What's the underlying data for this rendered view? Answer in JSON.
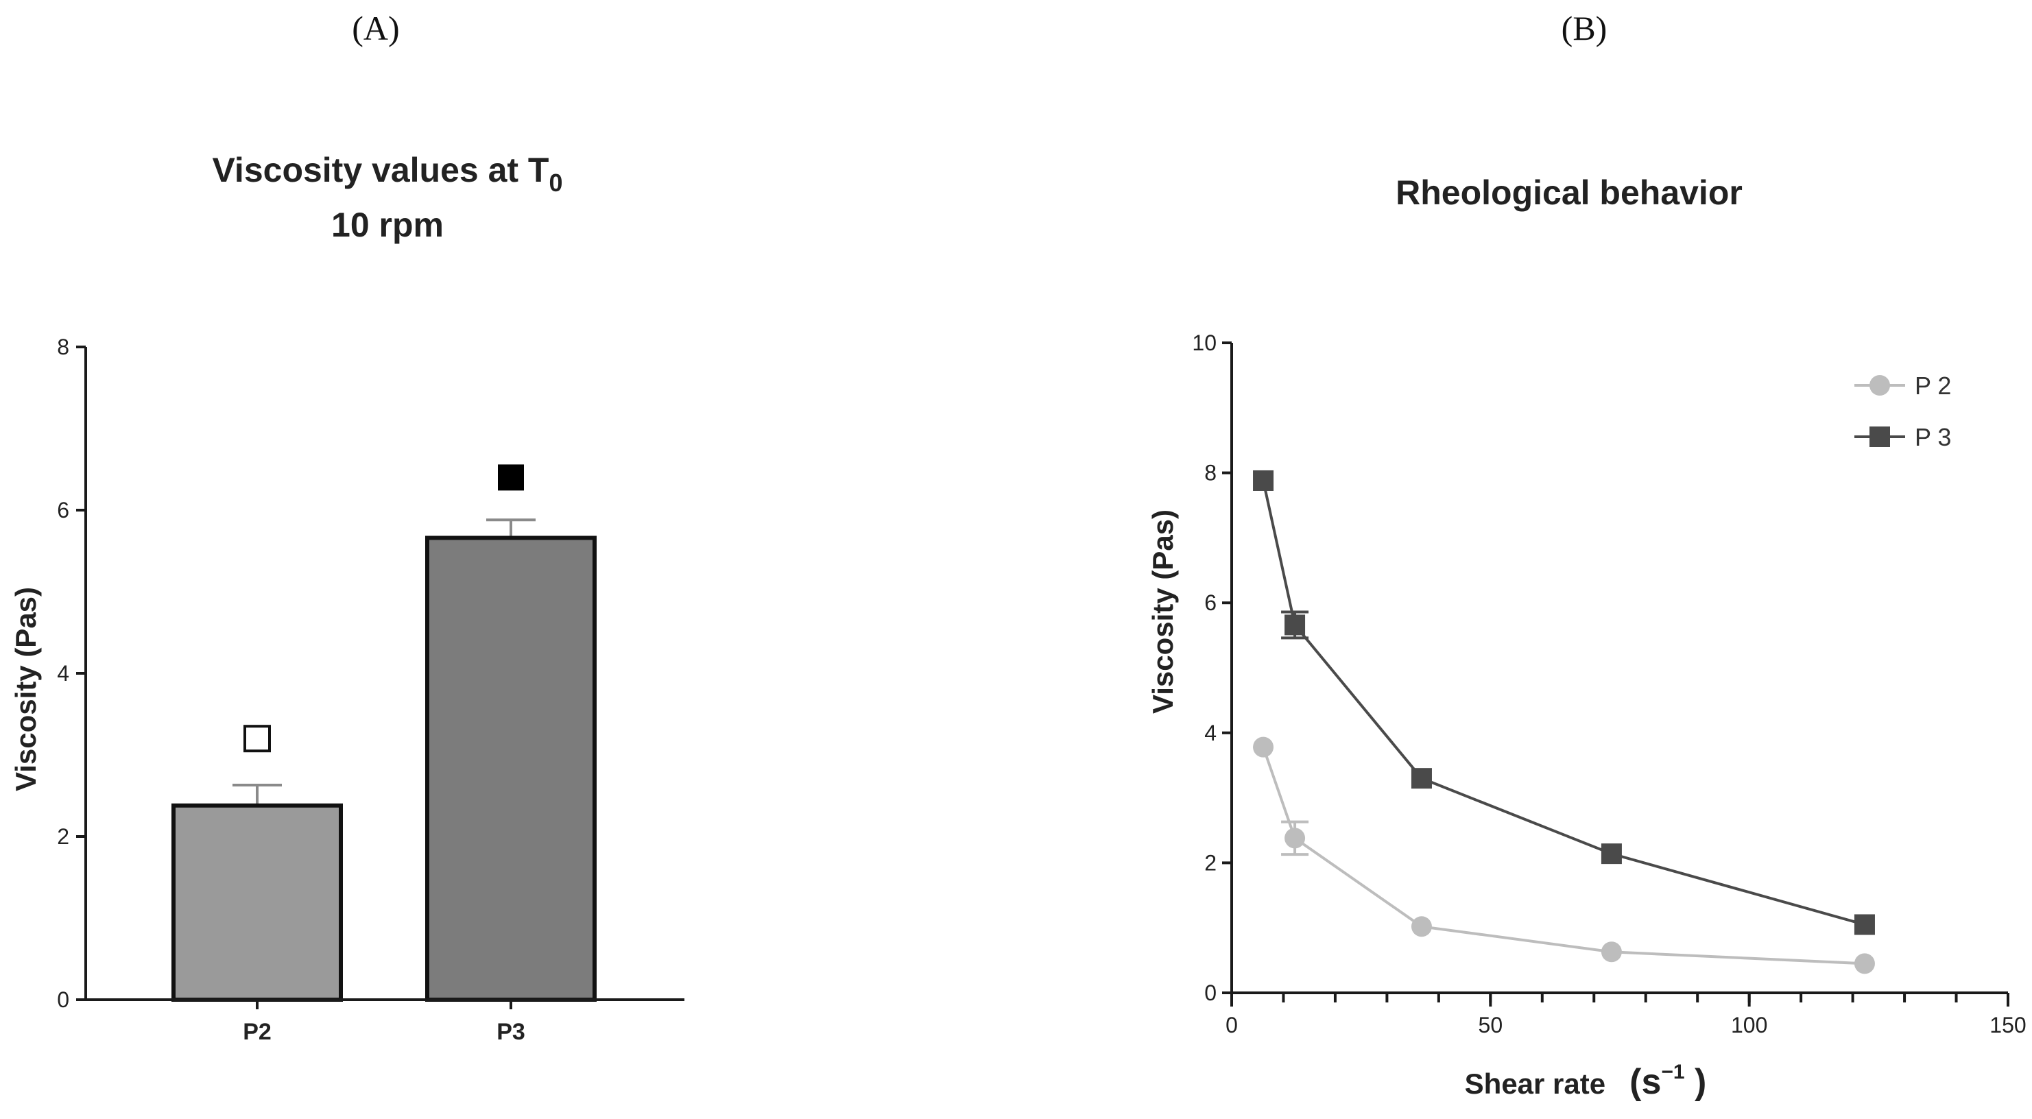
{
  "panels": {
    "a_label": "(A)",
    "b_label": "(B)"
  },
  "chart_data": [
    {
      "type": "bar",
      "title_line1": "Viscosity values at T",
      "title_subscript": "0",
      "title_line2": "10 rpm",
      "xlabel": "",
      "ylabel": "Viscosity (Pas)",
      "categories": [
        "P2",
        "P3"
      ],
      "values": [
        2.38,
        5.66
      ],
      "errors": [
        0.25,
        0.22
      ],
      "ylim": [
        0,
        8
      ],
      "yticks": [
        0,
        2,
        4,
        6,
        8
      ],
      "significance_markers": [
        {
          "category": "P2",
          "symbol": "open-square",
          "value": 3.2
        },
        {
          "category": "P3",
          "symbol": "filled-square",
          "value": 6.4
        }
      ],
      "colors": {
        "P2": "#9a9a9a",
        "P3": "#7c7c7c",
        "edge": "#111111",
        "error": "#8a8a8a"
      }
    },
    {
      "type": "line",
      "title": "Rheological behavior",
      "xlabel": "Shear rate",
      "xlabel_unit_base": "s",
      "xlabel_unit_exp": "−1",
      "ylabel": "Viscosity (Pas)",
      "xlim": [
        0,
        150
      ],
      "ylim": [
        0,
        10
      ],
      "xticks": [
        0,
        50,
        100,
        150
      ],
      "yticks": [
        0,
        2,
        4,
        6,
        8,
        10
      ],
      "legend_position": "top-right",
      "series": [
        {
          "name": "P 2",
          "marker": "circle",
          "color": "#bdbdbd",
          "x": [
            6.1,
            12.2,
            36.7,
            73.4,
            122.3
          ],
          "y": [
            3.78,
            2.38,
            1.02,
            0.63,
            0.45
          ],
          "err": [
            0,
            0.25,
            0,
            0,
            0
          ]
        },
        {
          "name": "P 3",
          "marker": "square",
          "color": "#4a4a4a",
          "x": [
            6.1,
            12.2,
            36.7,
            73.4,
            122.3
          ],
          "y": [
            7.88,
            5.66,
            3.3,
            2.14,
            1.05
          ],
          "err": [
            0,
            0.2,
            0,
            0,
            0
          ]
        }
      ]
    }
  ]
}
